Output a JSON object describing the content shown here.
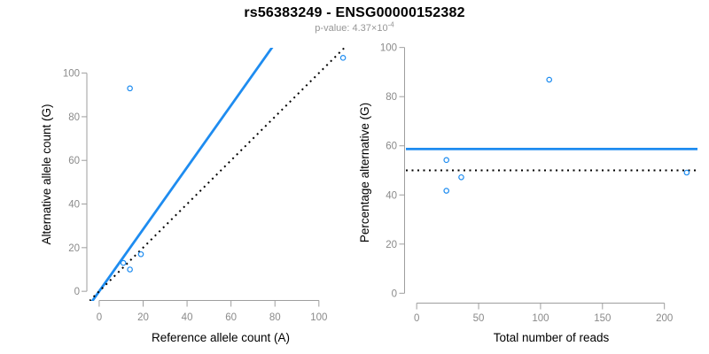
{
  "header": {
    "title": "rs56383249 - ENSG00000152382",
    "pvalue_prefix": "p-value: 4.37×10",
    "pvalue_exponent": "-4"
  },
  "colors": {
    "accent_blue": "#1E8CF0",
    "line_black": "#000000",
    "axis_line_gray": "#9e9e9e",
    "tick_text_gray": "#8a8a8a",
    "axis_title_black": "#000000",
    "subtitle_gray": "#969696"
  },
  "chart_data": [
    {
      "type": "scatter",
      "panel": "left",
      "xlabel": "Reference allele count (A)",
      "ylabel": "Alternative allele count (G)",
      "xticks": [
        0,
        20,
        40,
        60,
        80,
        100
      ],
      "yticks": [
        0,
        20,
        40,
        60,
        80,
        100
      ],
      "xlim": [
        -4.4,
        115.4
      ],
      "ylim": [
        -4.4,
        111.6
      ],
      "grid": false,
      "marker": "open-circle",
      "marker_color": "#1E8CF0",
      "points": [
        [
          11,
          13
        ],
        [
          14,
          10
        ],
        [
          19,
          17
        ],
        [
          14,
          93
        ],
        [
          111,
          107
        ]
      ],
      "lines": [
        {
          "kind": "abline",
          "slope": 1.42,
          "intercept": 0,
          "style": "solid",
          "color": "#1E8CF0"
        },
        {
          "kind": "abline",
          "slope": 1,
          "intercept": 0,
          "style": "dotted",
          "color": "#000000"
        }
      ]
    },
    {
      "type": "scatter",
      "panel": "right",
      "xlabel": "Total number of reads",
      "ylabel": "Percentage alternative (G)",
      "xticks": [
        0,
        50,
        100,
        150,
        200
      ],
      "yticks": [
        0,
        20,
        40,
        60,
        80,
        100
      ],
      "xlim": [
        -8.7,
        226.7
      ],
      "ylim": [
        -4.2,
        104.2
      ],
      "grid": false,
      "marker": "open-circle",
      "marker_color": "#1E8CF0",
      "points": [
        [
          24,
          54.2
        ],
        [
          24,
          41.7
        ],
        [
          36,
          47.2
        ],
        [
          107,
          86.9
        ],
        [
          218,
          49.1
        ]
      ],
      "lines": [
        {
          "kind": "hline",
          "value": 58.7,
          "style": "solid",
          "color": "#1E8CF0"
        },
        {
          "kind": "hline",
          "value": 50,
          "style": "dotted",
          "color": "#000000"
        }
      ]
    }
  ]
}
